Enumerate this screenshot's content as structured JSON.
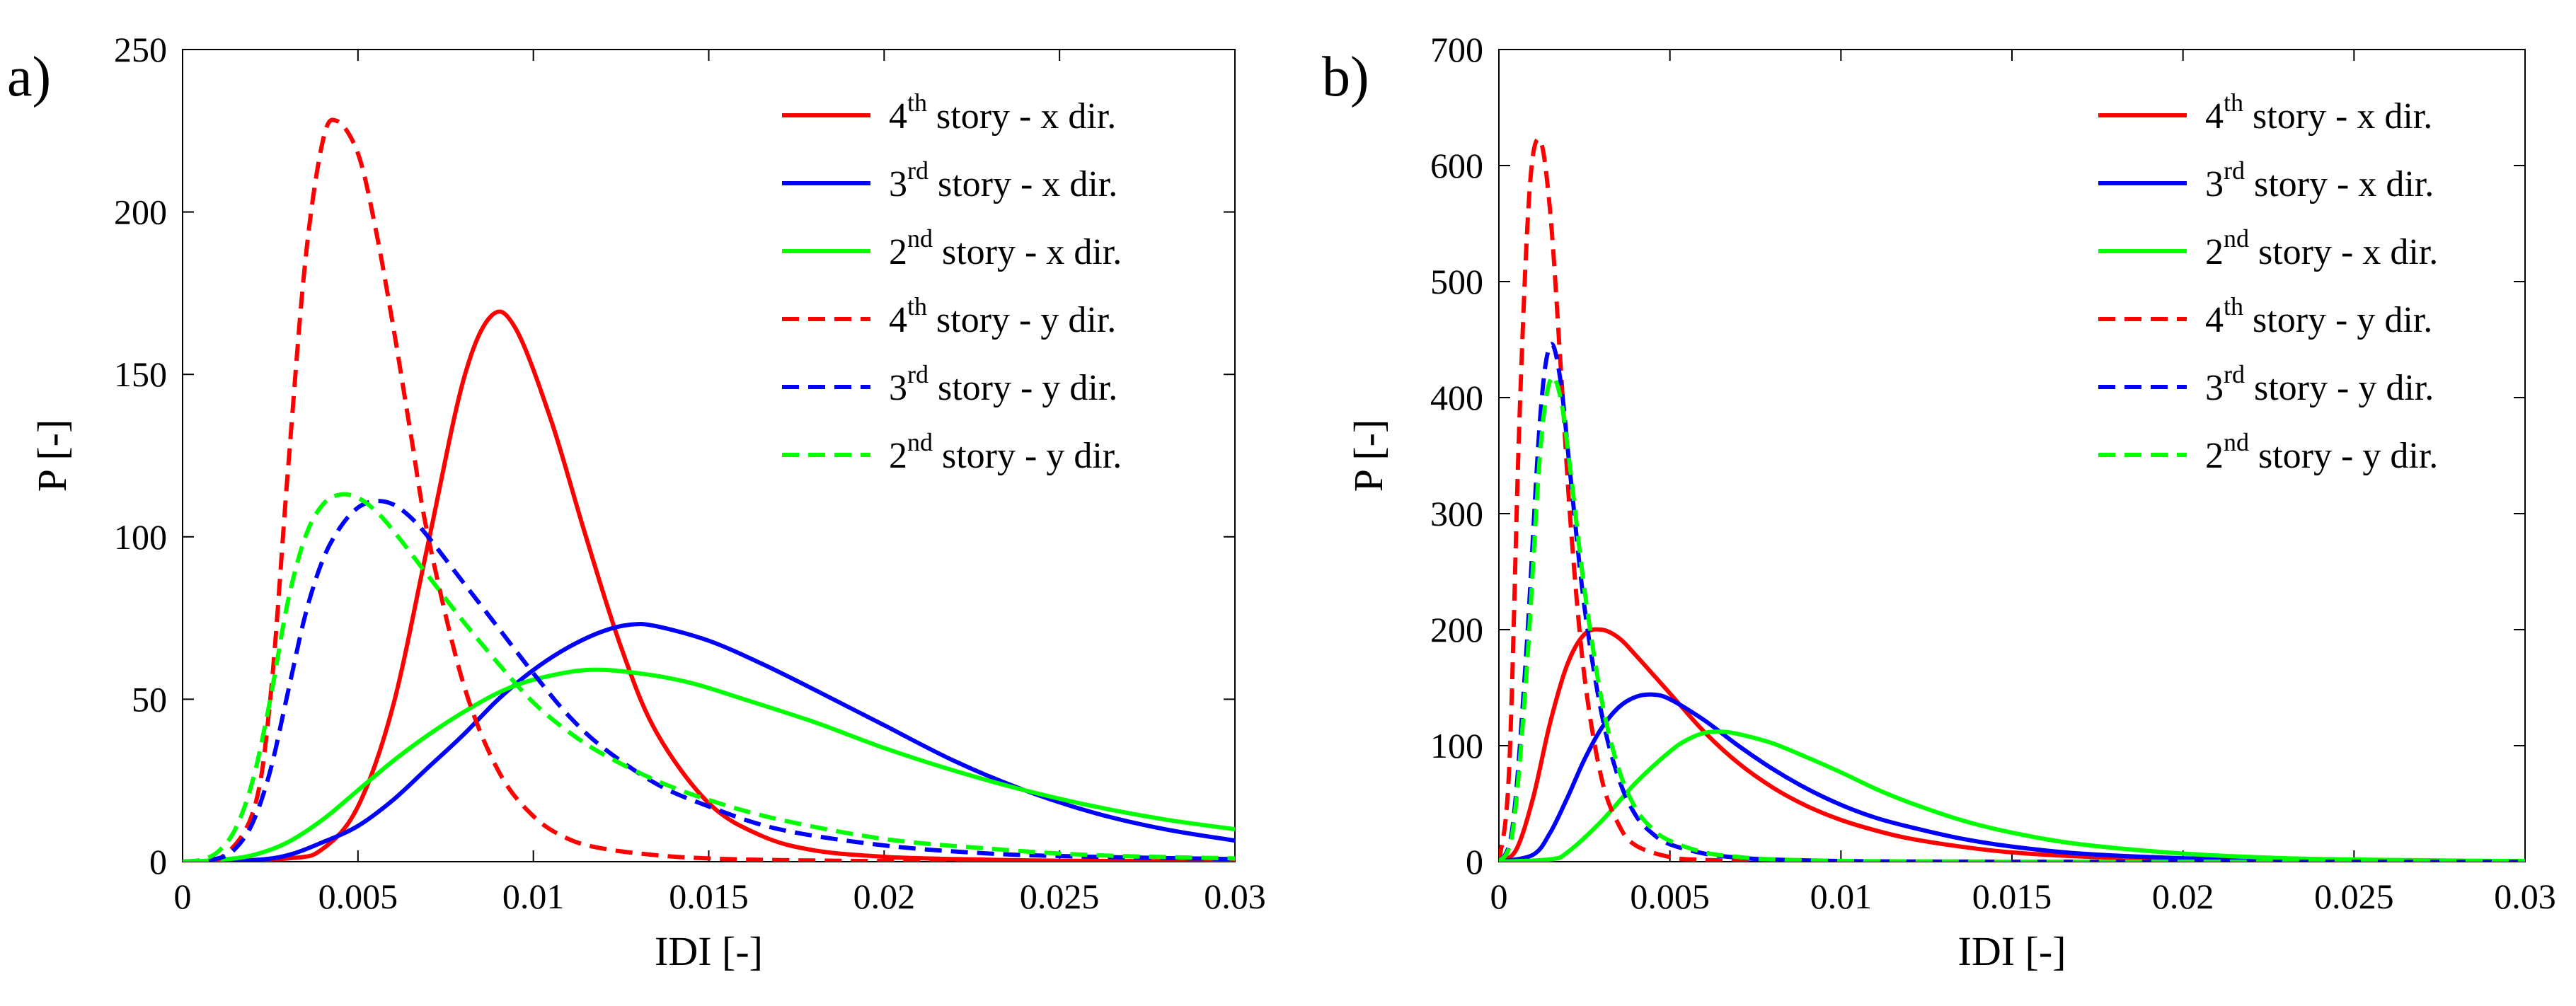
{
  "chart_data": [
    {
      "panel_label": "a)",
      "type": "line",
      "xlabel": "IDI [-]",
      "ylabel": "P [-]",
      "xlim": [
        0,
        0.03
      ],
      "ylim": [
        0,
        250
      ],
      "xticks": [
        0,
        0.005,
        0.01,
        0.015,
        0.02,
        0.025,
        0.03
      ],
      "xtick_labels": [
        "0",
        "0.005",
        "0.01",
        "0.015",
        "0.02",
        "0.025",
        "0.03"
      ],
      "yticks": [
        0,
        50,
        100,
        150,
        200,
        250
      ],
      "ytick_labels": [
        "0",
        "50",
        "100",
        "150",
        "200",
        "250"
      ],
      "legend_position": "top-right",
      "series": [
        {
          "sup": "th",
          "base": "4",
          "name": "story - x dir.",
          "color": "#ff0000",
          "dash": "solid",
          "x": [
            0,
            0.003,
            0.004,
            0.005,
            0.006,
            0.007,
            0.008,
            0.0088,
            0.0095,
            0.0105,
            0.0115,
            0.0125,
            0.0135,
            0.015,
            0.0165,
            0.018,
            0.02,
            0.022,
            0.025,
            0.03
          ],
          "y": [
            0,
            1,
            4,
            17,
            48,
            98,
            148,
            168,
            164,
            136,
            100,
            66,
            40,
            18,
            8,
            3.5,
            1.5,
            0.8,
            0.3,
            0.1
          ]
        },
        {
          "sup": "rd",
          "base": "3",
          "name": "story - x dir.",
          "color": "#0000ff",
          "dash": "solid",
          "x": [
            0,
            0.002,
            0.003,
            0.004,
            0.005,
            0.006,
            0.007,
            0.008,
            0.009,
            0.01,
            0.011,
            0.012,
            0.0128,
            0.0135,
            0.015,
            0.0165,
            0.018,
            0.02,
            0.022,
            0.024,
            0.026,
            0.028,
            0.03
          ],
          "y": [
            0,
            0.5,
            2,
            6,
            11,
            19,
            29,
            39,
            50,
            59,
            66,
            71,
            73,
            72.5,
            68,
            61,
            53,
            42,
            31,
            22,
            15,
            10,
            6.5
          ]
        },
        {
          "sup": "nd",
          "base": "2",
          "name": "story - x dir.",
          "color": "#00ff00",
          "dash": "solid",
          "x": [
            0,
            0.001,
            0.002,
            0.003,
            0.004,
            0.005,
            0.006,
            0.007,
            0.008,
            0.009,
            0.01,
            0.0115,
            0.013,
            0.0145,
            0.016,
            0.018,
            0.02,
            0.022,
            0.024,
            0.026,
            0.028,
            0.03
          ],
          "y": [
            0,
            0.5,
            2,
            6,
            13,
            22,
            31,
            39,
            46,
            52,
            56,
            59,
            58,
            55,
            50,
            43,
            35,
            28,
            22,
            17,
            13,
            10
          ]
        },
        {
          "sup": "th",
          "base": "4",
          "name": "story - y dir.",
          "color": "#ff0000",
          "dash": "dash",
          "x": [
            0,
            0.001,
            0.002,
            0.0025,
            0.003,
            0.0035,
            0.004,
            0.0044,
            0.005,
            0.0055,
            0.006,
            0.0065,
            0.007,
            0.008,
            0.009,
            0.01,
            0.011,
            0.012,
            0.0135,
            0.015,
            0.017,
            0.02,
            0.025,
            0.03
          ],
          "y": [
            0,
            0.5,
            15,
            50,
            120,
            185,
            222,
            228,
            218,
            195,
            165,
            132,
            100,
            55,
            28,
            14,
            7,
            4,
            2,
            1,
            0.5,
            0.2,
            0.1,
            0
          ]
        },
        {
          "sup": "rd",
          "base": "3",
          "name": "story - y dir.",
          "color": "#0000ff",
          "dash": "dash",
          "x": [
            0,
            0.001,
            0.0015,
            0.002,
            0.0025,
            0.003,
            0.0035,
            0.004,
            0.0045,
            0.005,
            0.0055,
            0.006,
            0.0065,
            0.007,
            0.008,
            0.009,
            0.01,
            0.011,
            0.012,
            0.0135,
            0.015,
            0.017,
            0.02,
            0.023,
            0.026,
            0.03
          ],
          "y": [
            0,
            1,
            4,
            12,
            28,
            52,
            76,
            93,
            103,
            109,
            111,
            110,
            106,
            100,
            86,
            72,
            58,
            45,
            35,
            24,
            17,
            10,
            5,
            2.5,
            1.5,
            0.8
          ]
        },
        {
          "sup": "nd",
          "base": "2",
          "name": "story - y dir.",
          "color": "#00ff00",
          "dash": "dash",
          "x": [
            0,
            0.0005,
            0.001,
            0.0015,
            0.002,
            0.0025,
            0.003,
            0.0035,
            0.004,
            0.0045,
            0.005,
            0.0055,
            0.006,
            0.007,
            0.008,
            0.009,
            0.01,
            0.011,
            0.012,
            0.0135,
            0.015,
            0.017,
            0.02,
            0.023,
            0.026,
            0.03
          ],
          "y": [
            0,
            0.5,
            3,
            10,
            25,
            50,
            80,
            100,
            110,
            113,
            112,
            108,
            102,
            88,
            74,
            61,
            49,
            40,
            33,
            25,
            19,
            13,
            7,
            4,
            2,
            1
          ]
        }
      ]
    },
    {
      "panel_label": "b)",
      "type": "line",
      "xlabel": "IDI [-]",
      "ylabel": "P [-]",
      "xlim": [
        0,
        0.03
      ],
      "ylim": [
        0,
        700
      ],
      "xticks": [
        0,
        0.005,
        0.01,
        0.015,
        0.02,
        0.025,
        0.03
      ],
      "xtick_labels": [
        "0",
        "0.005",
        "0.01",
        "0.015",
        "0.02",
        "0.025",
        "0.03"
      ],
      "yticks": [
        0,
        100,
        200,
        300,
        400,
        500,
        600,
        700
      ],
      "ytick_labels": [
        "0",
        "100",
        "200",
        "300",
        "400",
        "500",
        "600",
        "700"
      ],
      "legend_position": "top-right",
      "series": [
        {
          "sup": "th",
          "base": "4",
          "name": "story - x dir.",
          "color": "#ff0000",
          "dash": "solid",
          "x": [
            0,
            0.0005,
            0.001,
            0.0015,
            0.002,
            0.0025,
            0.003,
            0.0035,
            0.004,
            0.005,
            0.006,
            0.007,
            0.008,
            0.009,
            0.01,
            0.011,
            0.012,
            0.0135,
            0.015,
            0.017,
            0.02,
            0.025,
            0.03
          ],
          "y": [
            0,
            10,
            55,
            120,
            170,
            196,
            200,
            193,
            178,
            145,
            112,
            85,
            64,
            48,
            36,
            27,
            20,
            13,
            8,
            4.5,
            2,
            0.5,
            0.1
          ]
        },
        {
          "sup": "rd",
          "base": "3",
          "name": "story - x dir.",
          "color": "#0000ff",
          "dash": "solid",
          "x": [
            0,
            0.001,
            0.0015,
            0.002,
            0.0025,
            0.003,
            0.0035,
            0.004,
            0.0045,
            0.005,
            0.006,
            0.007,
            0.008,
            0.009,
            0.01,
            0.011,
            0.012,
            0.0135,
            0.015,
            0.017,
            0.02,
            0.023,
            0.026,
            0.03
          ],
          "y": [
            0,
            6,
            25,
            55,
            88,
            115,
            133,
            142,
            144,
            140,
            122,
            100,
            80,
            63,
            49,
            38,
            30,
            20,
            13,
            7,
            3,
            1.5,
            0.7,
            0.2
          ]
        },
        {
          "sup": "nd",
          "base": "2",
          "name": "story - x dir.",
          "color": "#00ff00",
          "dash": "solid",
          "x": [
            0,
            0.0015,
            0.002,
            0.003,
            0.004,
            0.005,
            0.0055,
            0.006,
            0.0065,
            0.007,
            0.008,
            0.009,
            0.01,
            0.011,
            0.012,
            0.0135,
            0.015,
            0.017,
            0.02,
            0.023,
            0.026,
            0.03
          ],
          "y": [
            0,
            2,
            8,
            35,
            68,
            95,
            105,
            111,
            112,
            110,
            102,
            90,
            77,
            63,
            51,
            36,
            25,
            15,
            7,
            3,
            1.5,
            0.5
          ]
        },
        {
          "sup": "th",
          "base": "4",
          "name": "story - y dir.",
          "color": "#ff0000",
          "dash": "dash",
          "x": [
            0,
            0.0003,
            0.0006,
            0.0009,
            0.0012,
            0.0015,
            0.0018,
            0.0021,
            0.0025,
            0.003,
            0.0035,
            0.004,
            0.005,
            0.006,
            0.008,
            0.01,
            0.015,
            0.02,
            0.03
          ],
          "y": [
            0,
            80,
            380,
            580,
            622,
            560,
            430,
            290,
            160,
            72,
            32,
            14,
            4,
            1.5,
            0.5,
            0.2,
            0,
            0,
            0
          ]
        },
        {
          "sup": "rd",
          "base": "3",
          "name": "story - y dir.",
          "color": "#0000ff",
          "dash": "dash",
          "x": [
            0,
            0.0004,
            0.0008,
            0.0012,
            0.0015,
            0.0018,
            0.0021,
            0.0025,
            0.003,
            0.0035,
            0.004,
            0.0045,
            0.005,
            0.006,
            0.007,
            0.008,
            0.01,
            0.012,
            0.015,
            0.02,
            0.03
          ],
          "y": [
            0,
            30,
            180,
            380,
            445,
            415,
            330,
            220,
            128,
            72,
            40,
            24,
            15,
            7,
            3.5,
            1.8,
            0.6,
            0.2,
            0,
            0,
            0
          ]
        },
        {
          "sup": "nd",
          "base": "2",
          "name": "story - y dir.",
          "color": "#00ff00",
          "dash": "dash",
          "x": [
            0,
            0.0004,
            0.0008,
            0.0012,
            0.0015,
            0.0018,
            0.0021,
            0.0025,
            0.003,
            0.0035,
            0.004,
            0.0045,
            0.005,
            0.006,
            0.007,
            0.008,
            0.01,
            0.012,
            0.015,
            0.02,
            0.03
          ],
          "y": [
            0,
            25,
            160,
            350,
            415,
            400,
            335,
            235,
            140,
            80,
            46,
            28,
            18,
            8,
            4,
            2,
            0.7,
            0.3,
            0,
            0,
            0
          ]
        }
      ]
    }
  ]
}
